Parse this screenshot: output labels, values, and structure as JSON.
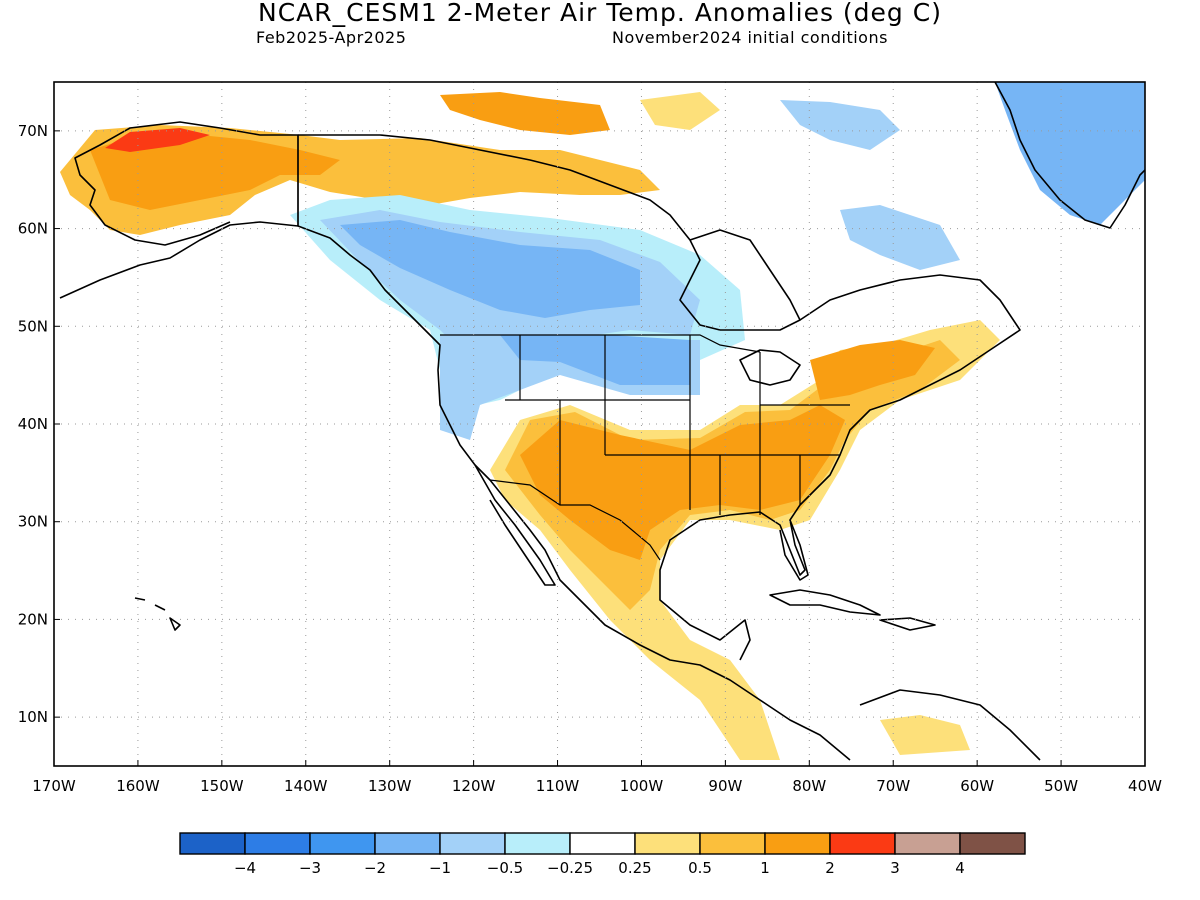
{
  "title": "NCAR_CESM1 2-Meter Air Temp. Anomalies (deg C)",
  "period": "Feb2025-Apr2025",
  "initial_conditions": "November2024 initial conditions",
  "axes": {
    "lon_labels": [
      "170W",
      "160W",
      "150W",
      "140W",
      "130W",
      "120W",
      "110W",
      "100W",
      "90W",
      "80W",
      "70W",
      "60W",
      "50W",
      "40W"
    ],
    "lat_labels": [
      "70N",
      "60N",
      "50N",
      "40N",
      "30N",
      "20N",
      "10N"
    ],
    "lon_range": [
      -170,
      -40
    ],
    "lat_range": [
      5,
      75
    ],
    "grid": "dotted"
  },
  "colorbar": {
    "labels": [
      "−4",
      "−3",
      "−2",
      "−1",
      "−0.5",
      "−0.25",
      "0.25",
      "0.5",
      "1",
      "2",
      "3",
      "4"
    ],
    "colors": [
      "#1c62c8",
      "#2d7de6",
      "#3f96f0",
      "#76b5f5",
      "#a3d1f8",
      "#b8eefa",
      "#ffffff",
      "#fde07a",
      "#fbbf3c",
      "#f99e12",
      "#fb3a14",
      "#c8a093",
      "#7f5246"
    ]
  },
  "anomaly_regions": [
    {
      "name": "alaska-warm",
      "category": "1",
      "color": "#fbbf3c"
    },
    {
      "name": "alaska-hot",
      "category": "2",
      "color": "#fb3a14"
    },
    {
      "name": "canada-cool",
      "category": "-1",
      "color": "#76b5f5"
    },
    {
      "name": "northwest-cool",
      "category": "-0.5",
      "color": "#a3d1f8"
    },
    {
      "name": "southwest-us-warm",
      "category": "1",
      "color": "#f99e12"
    },
    {
      "name": "east-us-warm",
      "category": "1",
      "color": "#f99e12"
    },
    {
      "name": "mexico-warm",
      "category": "0.5",
      "color": "#fbbf3c"
    },
    {
      "name": "greenland-cool",
      "category": "-1",
      "color": "#76b5f5"
    }
  ]
}
